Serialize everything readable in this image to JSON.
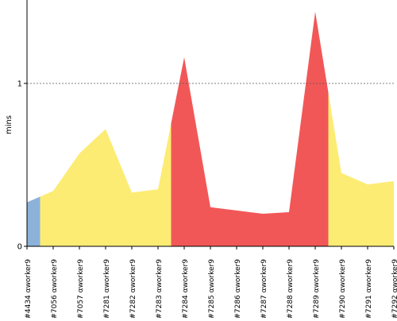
{
  "chart_data": {
    "type": "area",
    "y_label": "mins",
    "categories": [
      "#4434 αworker9",
      "#7056 αworker9",
      "#7057 αworker9",
      "#7281 αworker9",
      "#7282 αworker9",
      "#7283 αworker9",
      "#7284 αworker9",
      "#7285 αworker9",
      "#7286 αworker9",
      "#7287 αworker9",
      "#7288 αworker9",
      "#7289 αworker9",
      "#7290 αworker9",
      "#7291 αworker9",
      "#7292 αworker9"
    ],
    "values": [
      0.27,
      0.34,
      0.57,
      0.72,
      0.33,
      0.35,
      1.16,
      0.24,
      0.22,
      0.2,
      0.21,
      1.44,
      0.45,
      0.38,
      0.4
    ],
    "colors": [
      "#8cb2d9",
      "#fcec74",
      "#fcec74",
      "#fcec74",
      "#fcec74",
      "#fcec74",
      "#f25757",
      "#f25757",
      "#f25757",
      "#f25757",
      "#f25757",
      "#f25757",
      "#fcec74",
      "#fcec74",
      "#fcec74"
    ],
    "ylim": [
      0,
      1.512
    ],
    "yticks": [
      0,
      1
    ],
    "grid": true
  }
}
